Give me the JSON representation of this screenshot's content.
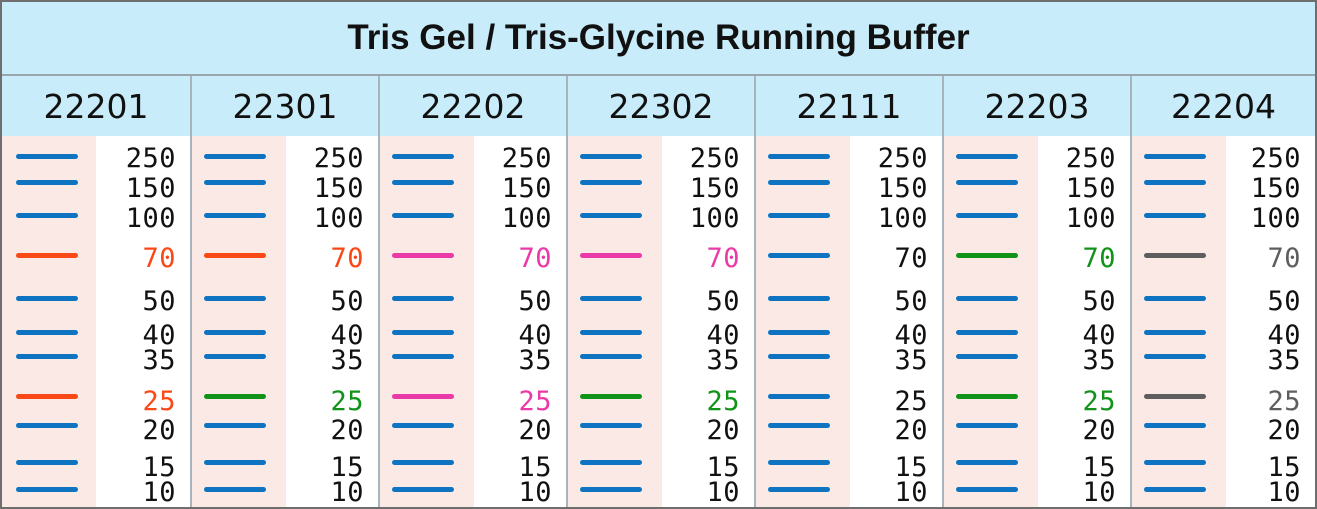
{
  "title": "Tris Gel / Tris-Glycine Running Buffer",
  "colors": {
    "default": "#0e73c0",
    "orange": "#fa4816",
    "magenta": "#ea3aa8",
    "green": "#11931a",
    "gray": "#5e5e5e"
  },
  "chart_data": {
    "type": "table",
    "title": "Tris Gel / Tris-Glycine Running Buffer",
    "markers": [
      "250",
      "150",
      "100",
      "70",
      "50",
      "40",
      "35",
      "25",
      "20",
      "15",
      "10"
    ],
    "lanes": [
      {
        "label": "22201",
        "colors": {
          "70": "orange",
          "25": "orange"
        }
      },
      {
        "label": "22301",
        "colors": {
          "70": "orange",
          "25": "green"
        }
      },
      {
        "label": "22202",
        "colors": {
          "70": "magenta",
          "25": "magenta"
        }
      },
      {
        "label": "22302",
        "colors": {
          "70": "magenta",
          "25": "green"
        }
      },
      {
        "label": "22111",
        "colors": {}
      },
      {
        "label": "22203",
        "colors": {
          "70": "green",
          "25": "green"
        }
      },
      {
        "label": "22204",
        "colors": {
          "70": "gray",
          "25": "gray"
        }
      }
    ]
  }
}
